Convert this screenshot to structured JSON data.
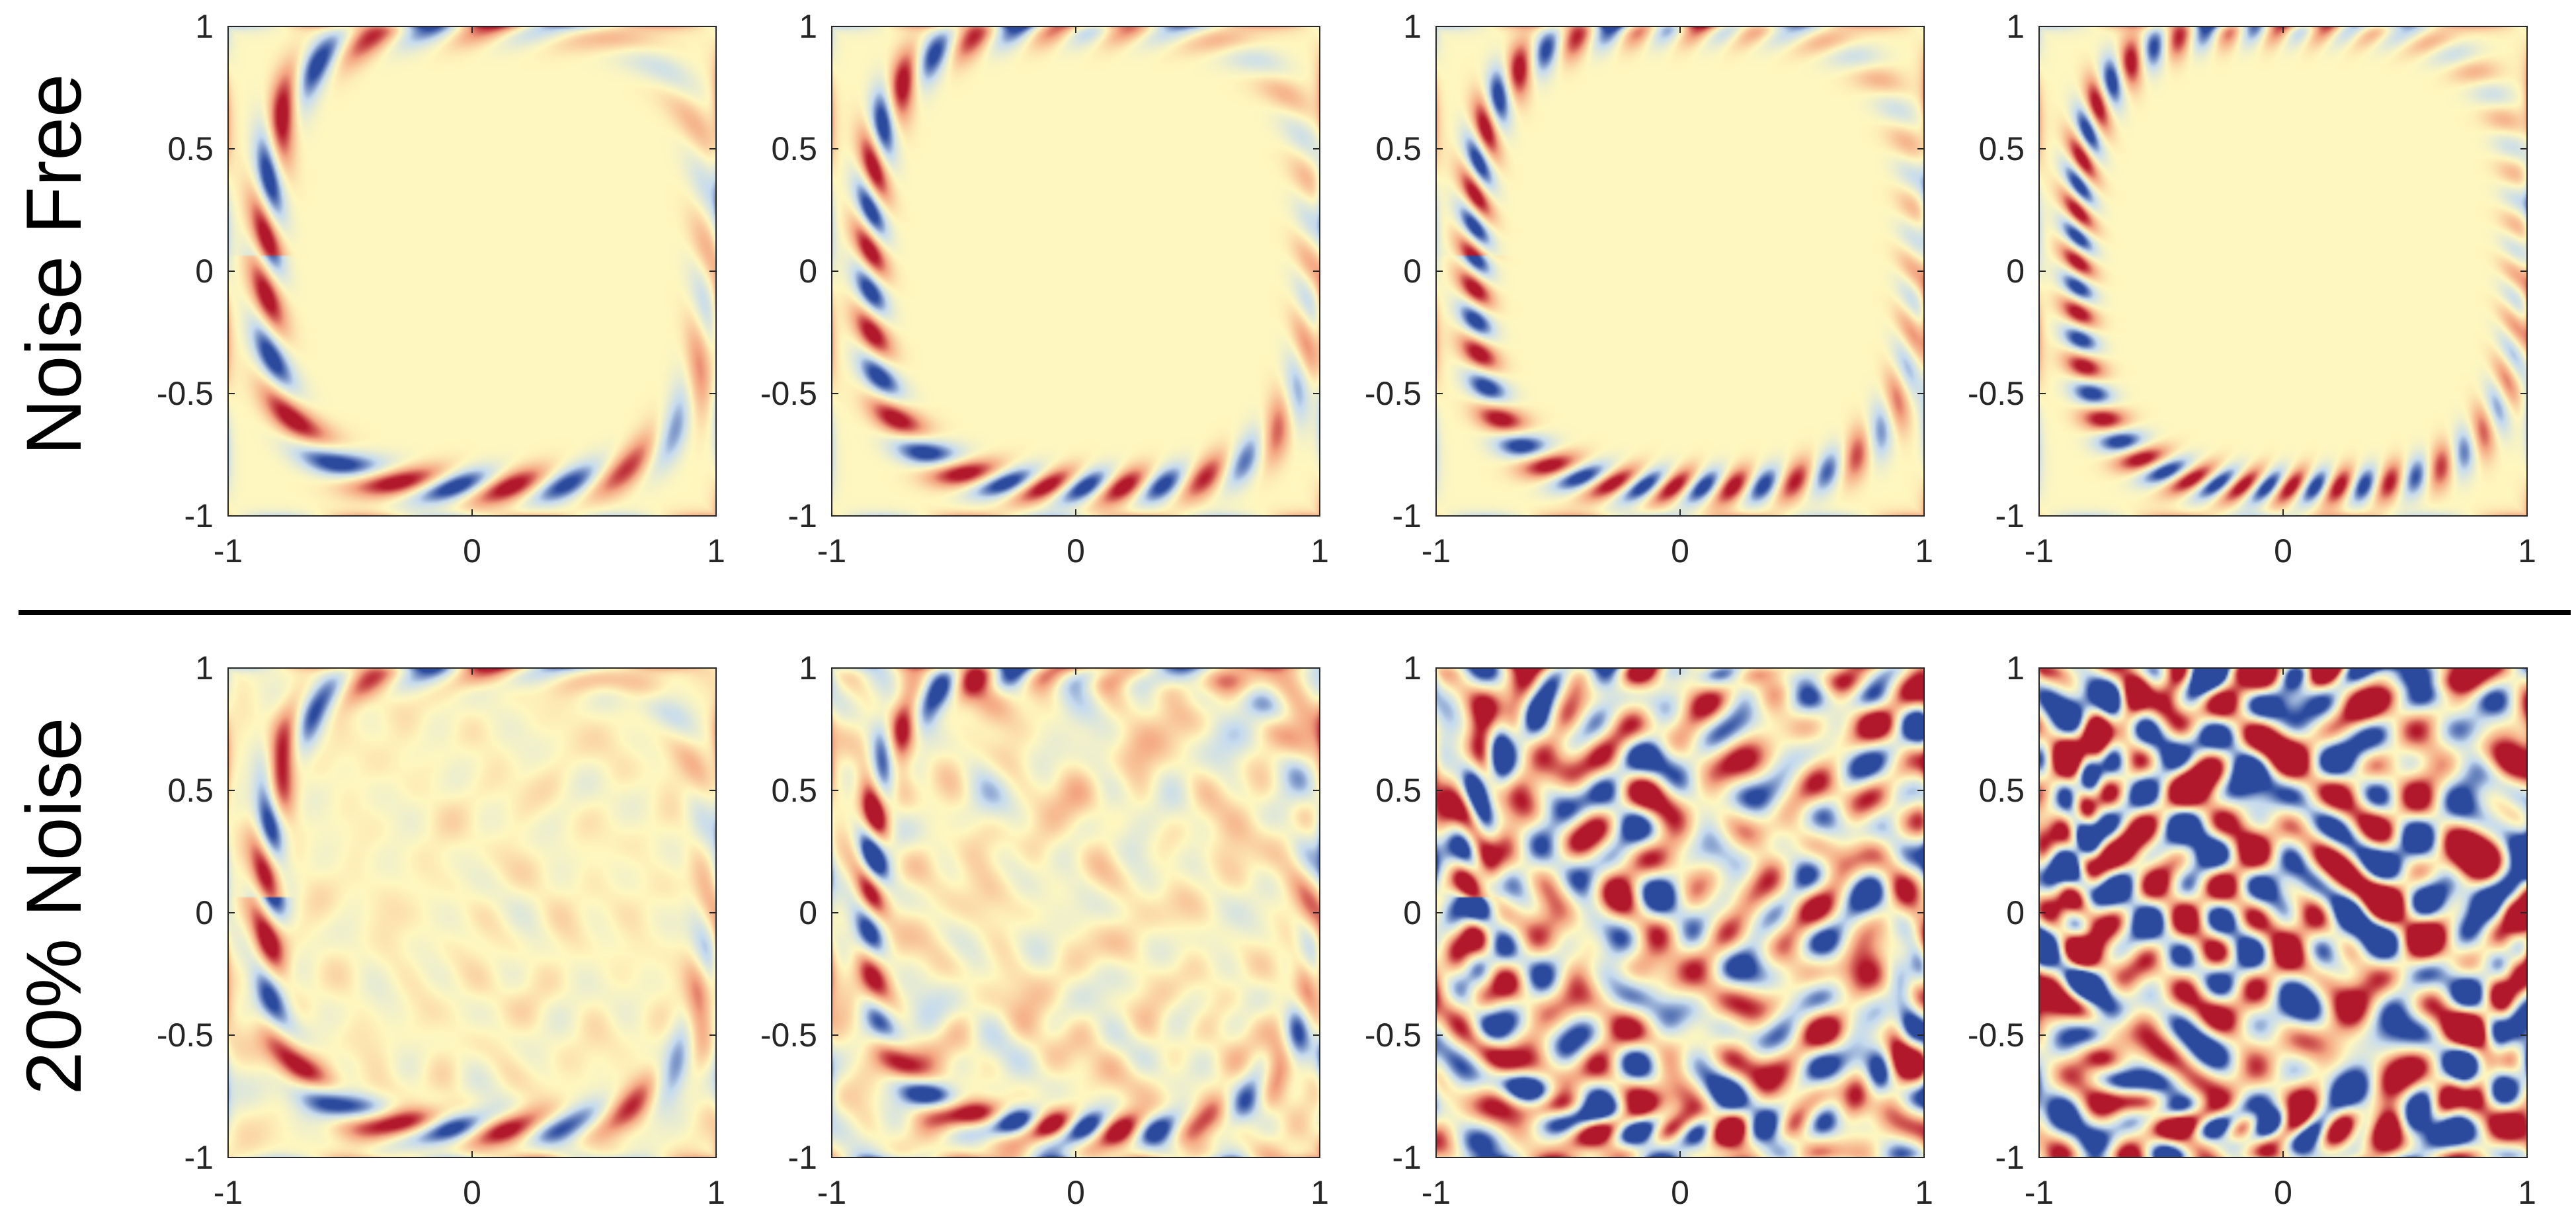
{
  "figure": {
    "row_labels": [
      "Noise Free",
      "20% Noise"
    ],
    "colors": {
      "background": "#fff7bf",
      "positive": "#b2182b",
      "negative": "#2b4a9e",
      "light_positive": "#f4a582",
      "light_negative": "#c6dbef",
      "separator": "#000000",
      "axis": "#262626"
    }
  },
  "chart_data": [
    {
      "type": "heatmap",
      "row": "Noise Free",
      "column": 1,
      "xlim": [
        -1,
        1
      ],
      "ylim": [
        -1,
        1
      ],
      "xticks": [
        -1,
        0,
        1
      ],
      "yticks": [
        -1,
        -0.5,
        0,
        0.5,
        1
      ],
      "xtick_labels": [
        "-1",
        "0",
        "1"
      ],
      "ytick_labels": [
        "-1",
        "-0.5",
        "0",
        "0.5",
        "1"
      ],
      "grid": false,
      "pattern_frequency": 1,
      "noise_level": 0
    },
    {
      "type": "heatmap",
      "row": "Noise Free",
      "column": 2,
      "xlim": [
        -1,
        1
      ],
      "ylim": [
        -1,
        1
      ],
      "xticks": [
        -1,
        0,
        1
      ],
      "yticks": [
        -1,
        -0.5,
        0,
        0.5,
        1
      ],
      "xtick_labels": [
        "-1",
        "0",
        "1"
      ],
      "ytick_labels": [
        "-1",
        "-0.5",
        "0",
        "0.5",
        "1"
      ],
      "grid": false,
      "pattern_frequency": 2,
      "noise_level": 0
    },
    {
      "type": "heatmap",
      "row": "Noise Free",
      "column": 3,
      "xlim": [
        -1,
        1
      ],
      "ylim": [
        -1,
        1
      ],
      "xticks": [
        -1,
        0,
        1
      ],
      "yticks": [
        -1,
        -0.5,
        0,
        0.5,
        1
      ],
      "xtick_labels": [
        "-1",
        "0",
        "1"
      ],
      "ytick_labels": [
        "-1",
        "-0.5",
        "0",
        "0.5",
        "1"
      ],
      "grid": false,
      "pattern_frequency": 3,
      "noise_level": 0
    },
    {
      "type": "heatmap",
      "row": "Noise Free",
      "column": 4,
      "xlim": [
        -1,
        1
      ],
      "ylim": [
        -1,
        1
      ],
      "xticks": [
        -1,
        0,
        1
      ],
      "yticks": [
        -1,
        -0.5,
        0,
        0.5,
        1
      ],
      "xtick_labels": [
        "-1",
        "0",
        "1"
      ],
      "ytick_labels": [
        "-1",
        "-0.5",
        "0",
        "0.5",
        "1"
      ],
      "grid": false,
      "pattern_frequency": 4,
      "noise_level": 0
    },
    {
      "type": "heatmap",
      "row": "20% Noise",
      "column": 1,
      "xlim": [
        -1,
        1
      ],
      "ylim": [
        -1,
        1
      ],
      "xticks": [
        -1,
        0,
        1
      ],
      "yticks": [
        -1,
        -0.5,
        0,
        0.5,
        1
      ],
      "xtick_labels": [
        "-1",
        "0",
        "1"
      ],
      "ytick_labels": [
        "-1",
        "-0.5",
        "0",
        "0.5",
        "1"
      ],
      "grid": false,
      "pattern_frequency": 1,
      "noise_level": 0.05
    },
    {
      "type": "heatmap",
      "row": "20% Noise",
      "column": 2,
      "xlim": [
        -1,
        1
      ],
      "ylim": [
        -1,
        1
      ],
      "xticks": [
        -1,
        0,
        1
      ],
      "yticks": [
        -1,
        -0.5,
        0,
        0.5,
        1
      ],
      "xtick_labels": [
        "-1",
        "0",
        "1"
      ],
      "ytick_labels": [
        "-1",
        "-0.5",
        "0",
        "0.5",
        "1"
      ],
      "grid": false,
      "pattern_frequency": 2,
      "noise_level": 0.1
    },
    {
      "type": "heatmap",
      "row": "20% Noise",
      "column": 3,
      "xlim": [
        -1,
        1
      ],
      "ylim": [
        -1,
        1
      ],
      "xticks": [
        -1,
        0,
        1
      ],
      "yticks": [
        -1,
        -0.5,
        0,
        0.5,
        1
      ],
      "xtick_labels": [
        "-1",
        "0",
        "1"
      ],
      "ytick_labels": [
        "-1",
        "-0.5",
        "0",
        "0.5",
        "1"
      ],
      "grid": false,
      "pattern_frequency": 3,
      "noise_level": 0.3
    },
    {
      "type": "heatmap",
      "row": "20% Noise",
      "column": 4,
      "xlim": [
        -1,
        1
      ],
      "ylim": [
        -1,
        1
      ],
      "xticks": [
        -1,
        0,
        1
      ],
      "yticks": [
        -1,
        -0.5,
        0,
        0.5,
        1
      ],
      "xtick_labels": [
        "-1",
        "0",
        "1"
      ],
      "ytick_labels": [
        "-1",
        "-0.5",
        "0",
        "0.5",
        "1"
      ],
      "grid": false,
      "pattern_frequency": 4,
      "noise_level": 0.55
    }
  ]
}
